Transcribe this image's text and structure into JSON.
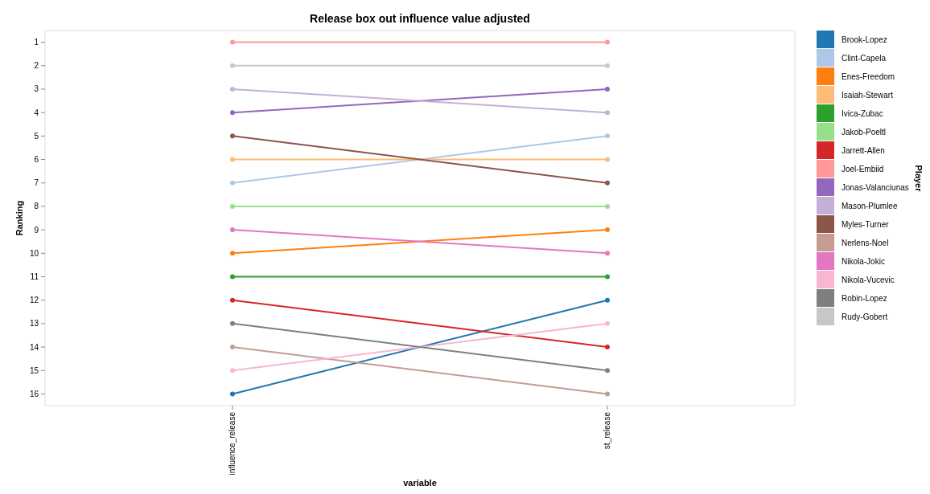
{
  "chart_data": {
    "type": "line",
    "title": "Release box out influence value adjusted",
    "xlabel": "variable",
    "ylabel": "Ranking",
    "legend_title": "Player",
    "categories": [
      "influence_release",
      "st_release"
    ],
    "ylim": [
      16.5,
      0.5
    ],
    "yticks": [
      1,
      2,
      3,
      4,
      5,
      6,
      7,
      8,
      9,
      10,
      11,
      12,
      13,
      14,
      15,
      16
    ],
    "grid": false,
    "legend": "right",
    "marker": "circle",
    "line_style": "solid",
    "series": [
      {
        "name": "Brook-Lopez",
        "color": "#1f77b4",
        "values": [
          16,
          12
        ]
      },
      {
        "name": "Clint-Capela",
        "color": "#aec7e8",
        "values": [
          7,
          5
        ]
      },
      {
        "name": "Enes-Freedom",
        "color": "#ff7f0e",
        "values": [
          10,
          9
        ]
      },
      {
        "name": "Isaiah-Stewart",
        "color": "#ffbb78",
        "values": [
          6,
          6
        ]
      },
      {
        "name": "Ivica-Zubac",
        "color": "#2ca02c",
        "values": [
          11,
          11
        ]
      },
      {
        "name": "Jakob-Poeltl",
        "color": "#98df8a",
        "values": [
          8,
          8
        ]
      },
      {
        "name": "Jarrett-Allen",
        "color": "#d62728",
        "values": [
          12,
          14
        ]
      },
      {
        "name": "Joel-Embiid",
        "color": "#ff9896",
        "values": [
          1,
          1
        ]
      },
      {
        "name": "Jonas-Valanciunas",
        "color": "#9467bd",
        "values": [
          4,
          3
        ]
      },
      {
        "name": "Mason-Plumlee",
        "color": "#c5b0d5",
        "values": [
          3,
          4
        ]
      },
      {
        "name": "Myles-Turner",
        "color": "#8c564b",
        "values": [
          5,
          7
        ]
      },
      {
        "name": "Nerlens-Noel",
        "color": "#c49c94",
        "values": [
          14,
          16
        ]
      },
      {
        "name": "Nikola-Jokic",
        "color": "#e377c2",
        "values": [
          9,
          10
        ]
      },
      {
        "name": "Nikola-Vucevic",
        "color": "#f7b6d2",
        "values": [
          15,
          13
        ]
      },
      {
        "name": "Robin-Lopez",
        "color": "#7f7f7f",
        "values": [
          13,
          15
        ]
      },
      {
        "name": "Rudy-Gobert",
        "color": "#c7c7c7",
        "values": [
          2,
          2
        ]
      }
    ]
  }
}
